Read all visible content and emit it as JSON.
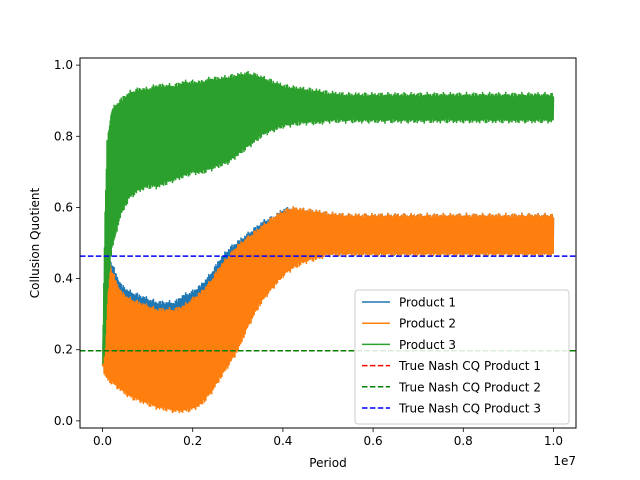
{
  "chart_data": {
    "type": "line",
    "title": "",
    "xlabel": "Period",
    "ylabel": "Collusion Quotient",
    "x_offset_label": "1e7",
    "xlim": [
      -0.05,
      1.05
    ],
    "ylim": [
      -0.02,
      1.02
    ],
    "x_unit_multiplier": 10000000,
    "x_ticks": [
      0.0,
      0.2,
      0.4,
      0.6,
      0.8,
      1.0
    ],
    "x_tick_labels": [
      "0.0",
      "0.2",
      "0.4",
      "0.6",
      "0.8",
      "1.0"
    ],
    "y_ticks": [
      0.0,
      0.2,
      0.4,
      0.6,
      0.8,
      1.0
    ],
    "y_tick_labels": [
      "0.0",
      "0.2",
      "0.4",
      "0.6",
      "0.8",
      "1.0"
    ],
    "grid": false,
    "legend_position": "lower-right",
    "series": [
      {
        "name": "Product 1",
        "color": "#1f77b4",
        "style": "oscillating-band",
        "x": [
          0.0,
          0.005,
          0.01,
          0.02,
          0.04,
          0.06,
          0.08,
          0.1,
          0.12,
          0.14,
          0.16,
          0.18,
          0.2,
          0.22,
          0.24,
          0.26,
          0.28,
          0.3,
          0.32,
          0.34,
          0.36,
          0.38,
          0.4,
          0.42,
          0.45,
          0.48,
          0.5,
          0.54,
          0.6,
          0.7,
          0.8,
          0.9,
          1.0
        ],
        "y_upper": [
          0.16,
          0.4,
          0.47,
          0.44,
          0.38,
          0.36,
          0.35,
          0.34,
          0.33,
          0.33,
          0.33,
          0.35,
          0.36,
          0.38,
          0.41,
          0.45,
          0.48,
          0.5,
          0.52,
          0.54,
          0.56,
          0.57,
          0.59,
          0.595,
          0.59,
          0.585,
          0.58,
          0.575,
          0.575,
          0.575,
          0.575,
          0.575,
          0.575
        ],
        "y_lower": [
          0.16,
          0.14,
          0.13,
          0.12,
          0.1,
          0.08,
          0.07,
          0.06,
          0.05,
          0.05,
          0.045,
          0.045,
          0.05,
          0.07,
          0.1,
          0.14,
          0.19,
          0.25,
          0.3,
          0.34,
          0.37,
          0.4,
          0.43,
          0.45,
          0.46,
          0.47,
          0.47,
          0.47,
          0.47,
          0.47,
          0.47,
          0.47,
          0.47
        ]
      },
      {
        "name": "Product 2",
        "color": "#ff7f0e",
        "style": "oscillating-band",
        "x": [
          0.0,
          0.005,
          0.01,
          0.02,
          0.04,
          0.06,
          0.08,
          0.1,
          0.12,
          0.14,
          0.16,
          0.18,
          0.2,
          0.22,
          0.24,
          0.26,
          0.28,
          0.3,
          0.32,
          0.34,
          0.36,
          0.38,
          0.4,
          0.42,
          0.45,
          0.48,
          0.5,
          0.54,
          0.6,
          0.7,
          0.8,
          0.9,
          1.0
        ],
        "y_upper": [
          0.16,
          0.38,
          0.49,
          0.42,
          0.36,
          0.34,
          0.33,
          0.32,
          0.31,
          0.31,
          0.31,
          0.32,
          0.34,
          0.36,
          0.39,
          0.43,
          0.46,
          0.49,
          0.51,
          0.53,
          0.55,
          0.57,
          0.585,
          0.595,
          0.59,
          0.585,
          0.58,
          0.575,
          0.575,
          0.575,
          0.575,
          0.575,
          0.575
        ],
        "y_lower": [
          0.16,
          0.13,
          0.12,
          0.11,
          0.09,
          0.07,
          0.06,
          0.05,
          0.04,
          0.035,
          0.03,
          0.03,
          0.035,
          0.05,
          0.08,
          0.12,
          0.16,
          0.2,
          0.26,
          0.31,
          0.35,
          0.38,
          0.41,
          0.43,
          0.45,
          0.46,
          0.47,
          0.47,
          0.47,
          0.47,
          0.47,
          0.47,
          0.47
        ]
      },
      {
        "name": "Product 3",
        "color": "#2ca02c",
        "style": "oscillating-band",
        "x": [
          0.0,
          0.005,
          0.01,
          0.02,
          0.04,
          0.06,
          0.08,
          0.1,
          0.12,
          0.14,
          0.16,
          0.18,
          0.2,
          0.22,
          0.24,
          0.26,
          0.28,
          0.3,
          0.32,
          0.34,
          0.36,
          0.38,
          0.4,
          0.42,
          0.45,
          0.48,
          0.5,
          0.54,
          0.6,
          0.7,
          0.8,
          0.9,
          1.0
        ],
        "y_upper": [
          0.16,
          0.55,
          0.78,
          0.87,
          0.9,
          0.92,
          0.93,
          0.93,
          0.94,
          0.94,
          0.94,
          0.95,
          0.95,
          0.95,
          0.96,
          0.96,
          0.965,
          0.97,
          0.975,
          0.97,
          0.96,
          0.95,
          0.94,
          0.935,
          0.93,
          0.925,
          0.92,
          0.915,
          0.915,
          0.915,
          0.915,
          0.915,
          0.915
        ],
        "y_lower": [
          0.16,
          0.2,
          0.35,
          0.48,
          0.58,
          0.63,
          0.65,
          0.66,
          0.66,
          0.67,
          0.68,
          0.69,
          0.7,
          0.7,
          0.71,
          0.72,
          0.73,
          0.75,
          0.77,
          0.79,
          0.81,
          0.82,
          0.83,
          0.835,
          0.84,
          0.84,
          0.845,
          0.845,
          0.845,
          0.845,
          0.845,
          0.845,
          0.845
        ]
      },
      {
        "name": "True Nash CQ Product 1",
        "color": "#ff0000",
        "style": "dashed-hline",
        "y": 0.197
      },
      {
        "name": "True Nash CQ Product 2",
        "color": "#008000",
        "style": "dashed-hline",
        "y": 0.197
      },
      {
        "name": "True Nash CQ Product 3",
        "color": "#0000ff",
        "style": "dashed-hline",
        "y": 0.463
      }
    ]
  }
}
